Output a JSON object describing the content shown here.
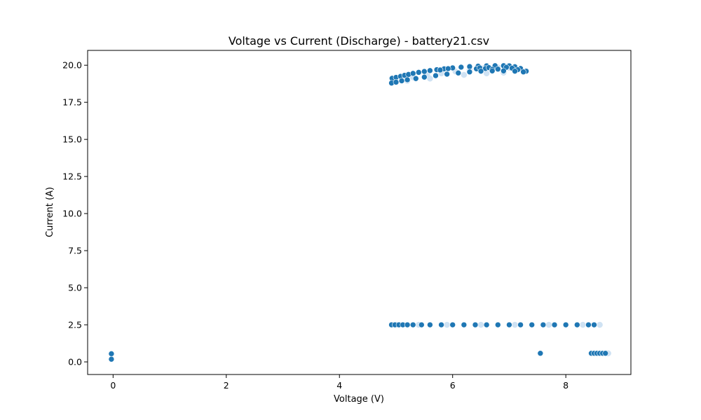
{
  "chart_data": {
    "type": "scatter",
    "title": "Voltage vs Current (Discharge) - battery21.csv",
    "xlabel": "Voltage (V)",
    "ylabel": "Current (A)",
    "xlim": [
      -0.45,
      9.15
    ],
    "ylim": [
      -0.85,
      21.0
    ],
    "xticks": [
      0,
      2,
      4,
      6,
      8
    ],
    "xtick_labels": [
      "0",
      "2",
      "4",
      "6",
      "8"
    ],
    "yticks": [
      0.0,
      2.5,
      5.0,
      7.5,
      10.0,
      12.5,
      15.0,
      17.5,
      20.0
    ],
    "ytick_labels": [
      "0.0",
      "2.5",
      "5.0",
      "7.5",
      "10.0",
      "12.5",
      "15.0",
      "17.5",
      "20.0"
    ],
    "grid": false,
    "legend": "none",
    "colors": {
      "marker": "#1f77b4",
      "marker_light": "#cfe2f3",
      "marker_edge": "#ffffff",
      "axis": "#000000"
    },
    "series": [
      {
        "points": [
          [
            -0.03,
            0.55
          ],
          [
            -0.03,
            0.18
          ],
          [
            4.92,
            2.5
          ],
          [
            4.98,
            2.5
          ],
          [
            5.05,
            2.5
          ],
          [
            5.12,
            2.5
          ],
          [
            5.2,
            2.5
          ],
          [
            5.3,
            2.5
          ],
          [
            5.45,
            2.5
          ],
          [
            5.6,
            2.5
          ],
          [
            5.8,
            2.5
          ],
          [
            6.0,
            2.5
          ],
          [
            6.2,
            2.5
          ],
          [
            6.4,
            2.5
          ],
          [
            6.6,
            2.5
          ],
          [
            6.8,
            2.5
          ],
          [
            7.0,
            2.5
          ],
          [
            7.2,
            2.5
          ],
          [
            7.4,
            2.5
          ],
          [
            7.6,
            2.5
          ],
          [
            7.8,
            2.5
          ],
          [
            8.0,
            2.5
          ],
          [
            8.2,
            2.5
          ],
          [
            8.4,
            2.5
          ],
          [
            8.5,
            2.5
          ],
          [
            7.55,
            0.58
          ],
          [
            8.45,
            0.58
          ],
          [
            8.5,
            0.58
          ],
          [
            8.55,
            0.58
          ],
          [
            8.6,
            0.58
          ],
          [
            8.65,
            0.58
          ],
          [
            8.7,
            0.58
          ],
          [
            4.93,
            19.12
          ],
          [
            5.0,
            19.18
          ],
          [
            5.08,
            19.25
          ],
          [
            5.15,
            19.32
          ],
          [
            5.22,
            19.38
          ],
          [
            5.3,
            19.45
          ],
          [
            5.4,
            19.52
          ],
          [
            5.5,
            19.58
          ],
          [
            5.6,
            19.64
          ],
          [
            5.72,
            19.7
          ],
          [
            5.85,
            19.76
          ],
          [
            6.0,
            19.82
          ],
          [
            6.15,
            19.87
          ],
          [
            6.3,
            19.91
          ],
          [
            6.45,
            19.94
          ],
          [
            6.6,
            19.96
          ],
          [
            6.75,
            19.97
          ],
          [
            6.9,
            19.97
          ],
          [
            7.0,
            19.96
          ],
          [
            7.1,
            19.9
          ],
          [
            7.2,
            19.78
          ],
          [
            7.3,
            19.6
          ],
          [
            5.78,
            19.68
          ],
          [
            5.92,
            19.77
          ],
          [
            6.42,
            19.76
          ],
          [
            6.48,
            19.82
          ],
          [
            6.58,
            19.78
          ],
          [
            6.64,
            19.84
          ],
          [
            6.7,
            19.72
          ],
          [
            6.8,
            19.74
          ],
          [
            6.95,
            19.86
          ],
          [
            7.05,
            19.8
          ],
          [
            7.15,
            19.7
          ],
          [
            4.92,
            18.8
          ],
          [
            5.0,
            18.86
          ],
          [
            5.1,
            18.95
          ],
          [
            5.2,
            19.02
          ],
          [
            5.35,
            19.1
          ],
          [
            5.5,
            19.2
          ],
          [
            5.7,
            19.3
          ],
          [
            5.9,
            19.4
          ],
          [
            6.1,
            19.48
          ],
          [
            6.3,
            19.55
          ],
          [
            6.5,
            19.6
          ],
          [
            6.7,
            19.62
          ],
          [
            6.9,
            19.62
          ],
          [
            7.1,
            19.6
          ],
          [
            7.25,
            19.55
          ]
        ],
        "light_points": [
          [
            5.0,
            2.5
          ],
          [
            5.4,
            2.5
          ],
          [
            5.9,
            2.5
          ],
          [
            6.5,
            2.5
          ],
          [
            7.1,
            2.5
          ],
          [
            7.7,
            2.5
          ],
          [
            8.3,
            2.5
          ],
          [
            8.6,
            2.5
          ],
          [
            8.72,
            0.58
          ],
          [
            8.75,
            0.58
          ],
          [
            4.95,
            18.9
          ],
          [
            5.1,
            19.05
          ],
          [
            5.3,
            19.18
          ],
          [
            5.55,
            19.32
          ],
          [
            5.8,
            19.45
          ],
          [
            6.05,
            19.58
          ],
          [
            6.3,
            19.7
          ],
          [
            6.55,
            19.8
          ],
          [
            6.8,
            19.85
          ],
          [
            7.0,
            19.82
          ],
          [
            6.2,
            19.35
          ],
          [
            6.6,
            19.45
          ],
          [
            6.9,
            19.5
          ],
          [
            5.6,
            19.1
          ],
          [
            5.2,
            18.95
          ]
        ]
      }
    ]
  }
}
